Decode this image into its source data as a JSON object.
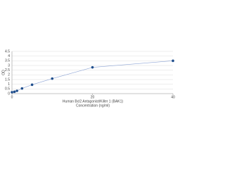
{
  "chart_data": {
    "type": "line",
    "x_label": "Human Bcl2 Antagonist/Killer 1 (BAK1)",
    "x_sublabel": "Concentration (ng/ml)",
    "y_label": "OD",
    "x": [
      0,
      0.625,
      1.25,
      2.5,
      5,
      10,
      20,
      40
    ],
    "series": [
      {
        "color": "#1f4e8c",
        "values": [
          0.15,
          0.2,
          0.3,
          0.55,
          0.95,
          1.6,
          2.8,
          3.5
        ]
      }
    ],
    "xlim": [
      0,
      40
    ],
    "xticks": [
      0,
      20,
      40
    ],
    "ylim": [
      0,
      4.5
    ],
    "yticks": [
      0,
      0.5,
      1,
      1.5,
      2,
      2.5,
      3,
      3.5,
      4,
      4.5
    ],
    "grid": true
  }
}
